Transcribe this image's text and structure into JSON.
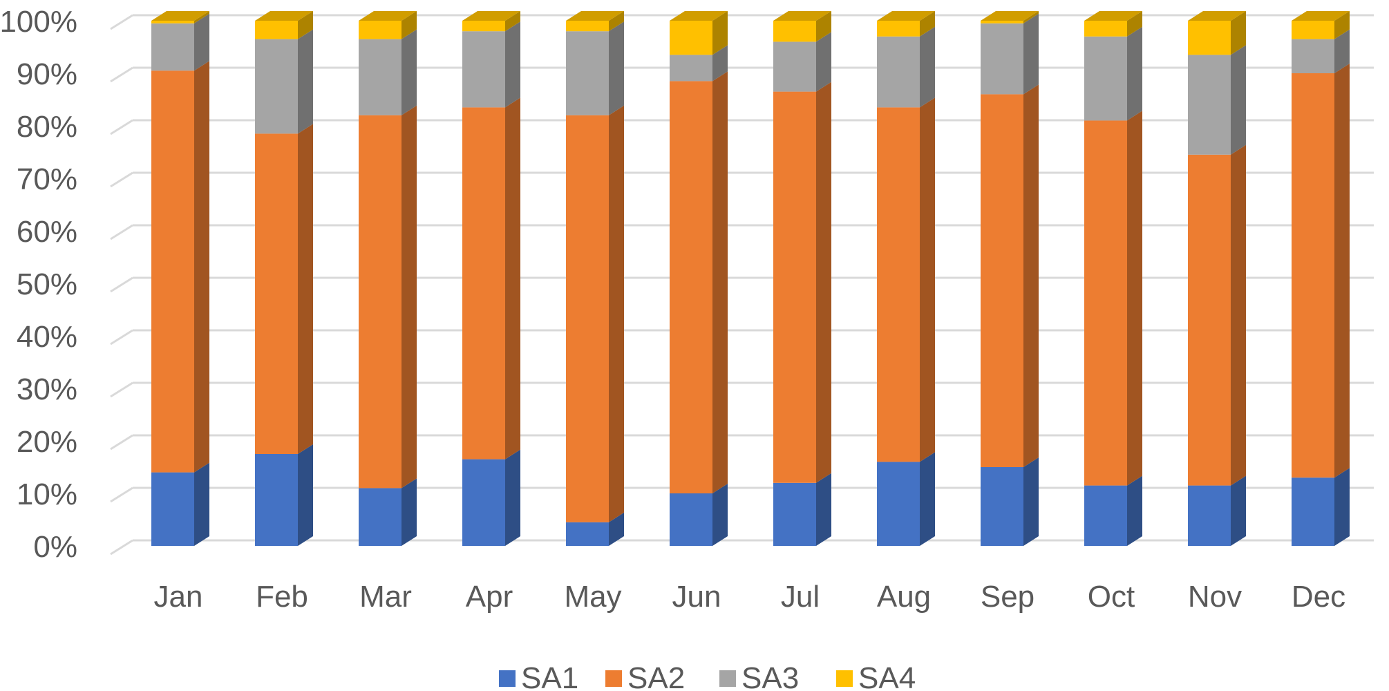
{
  "chart_data": {
    "type": "bar",
    "stacked": true,
    "percent_stacked": true,
    "three_d": true,
    "categories": [
      "Jan",
      "Feb",
      "Mar",
      "Apr",
      "May",
      "Jun",
      "Jul",
      "Aug",
      "Sep",
      "Oct",
      "Nov",
      "Dec"
    ],
    "series": [
      {
        "name": "SA1",
        "color": "#4472C4",
        "values": [
          14,
          17.5,
          11,
          16.5,
          4.5,
          10,
          12,
          16,
          15,
          11.5,
          11.5,
          13
        ]
      },
      {
        "name": "SA2",
        "color": "#ED7D31",
        "values": [
          76.5,
          61,
          71,
          67,
          77.5,
          78.5,
          74.5,
          67.5,
          71,
          69.5,
          63,
          77
        ]
      },
      {
        "name": "SA3",
        "color": "#A5A5A5",
        "values": [
          9,
          18,
          14.5,
          14.5,
          16,
          5,
          9.5,
          13.5,
          13.5,
          16,
          19,
          6.5
        ]
      },
      {
        "name": "SA4",
        "color": "#FFC000",
        "values": [
          0.5,
          3.5,
          3.5,
          2,
          2,
          6.5,
          4,
          3,
          0.5,
          3,
          6.5,
          3.5
        ]
      }
    ],
    "yticks": [
      "0%",
      "10%",
      "20%",
      "30%",
      "40%",
      "50%",
      "60%",
      "70%",
      "80%",
      "90%",
      "100%"
    ],
    "ylim": [
      0,
      100
    ],
    "title": "",
    "xlabel": "",
    "ylabel": "",
    "grid": true,
    "legend": "bottom"
  }
}
